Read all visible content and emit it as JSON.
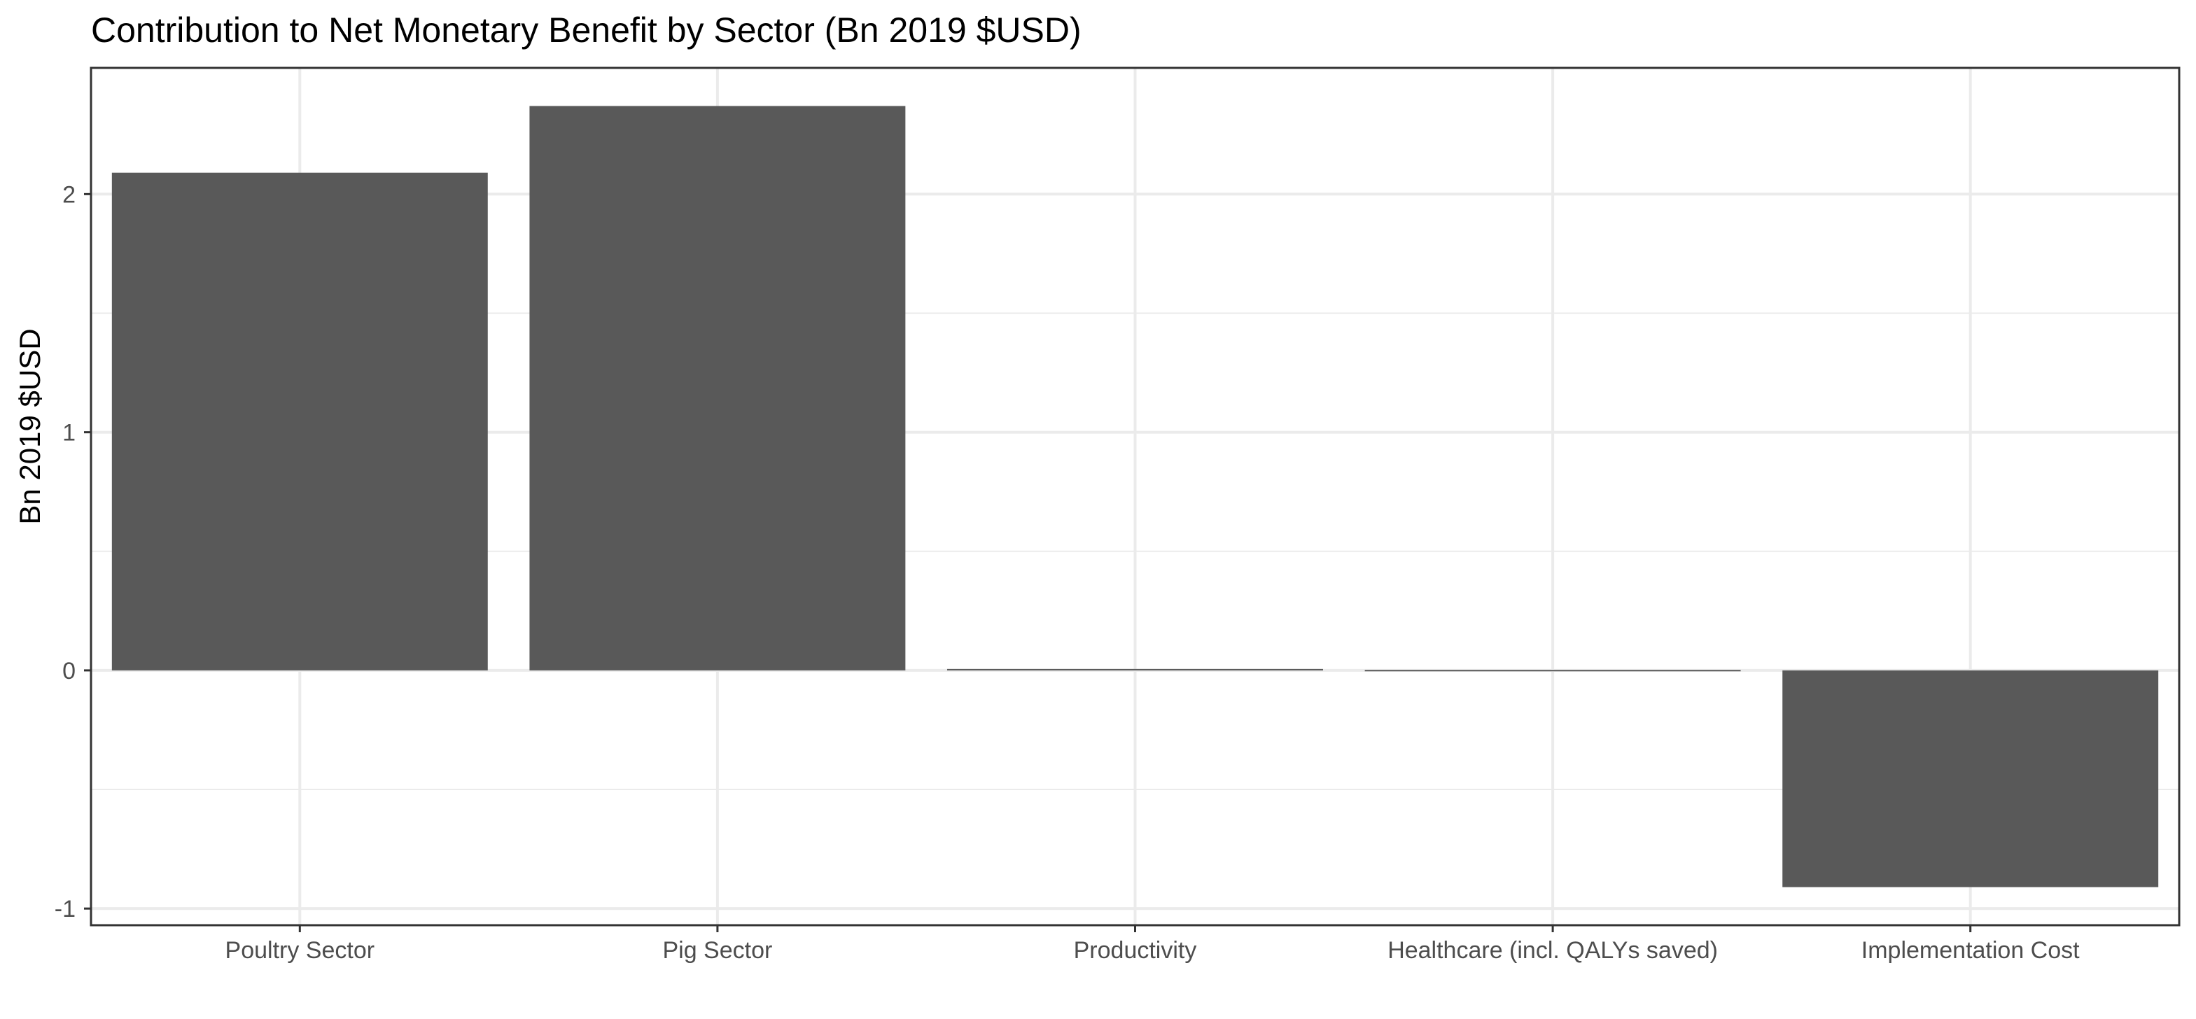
{
  "chart_data": {
    "type": "bar",
    "title": "Contribution to Net Monetary Benefit by Sector (Bn 2019 $USD)",
    "xlabel": "",
    "ylabel": "Bn 2019 $USD",
    "categories": [
      "Poultry Sector",
      "Pig Sector",
      "Productivity",
      "Healthcare (incl. QALYs saved)",
      "Implementation Cost"
    ],
    "values": [
      2.09,
      2.37,
      0.006,
      0.002,
      -0.91
    ],
    "ylim": [
      -1.07,
      2.53
    ],
    "yticks": [
      -1,
      0,
      1,
      2
    ],
    "ytick_labels": [
      "-1",
      "0",
      "1",
      "2"
    ],
    "grid": true,
    "legend": "none",
    "bar_color": "#595959",
    "grid_color": "#ebebeb",
    "panel_border_color": "#333333"
  }
}
